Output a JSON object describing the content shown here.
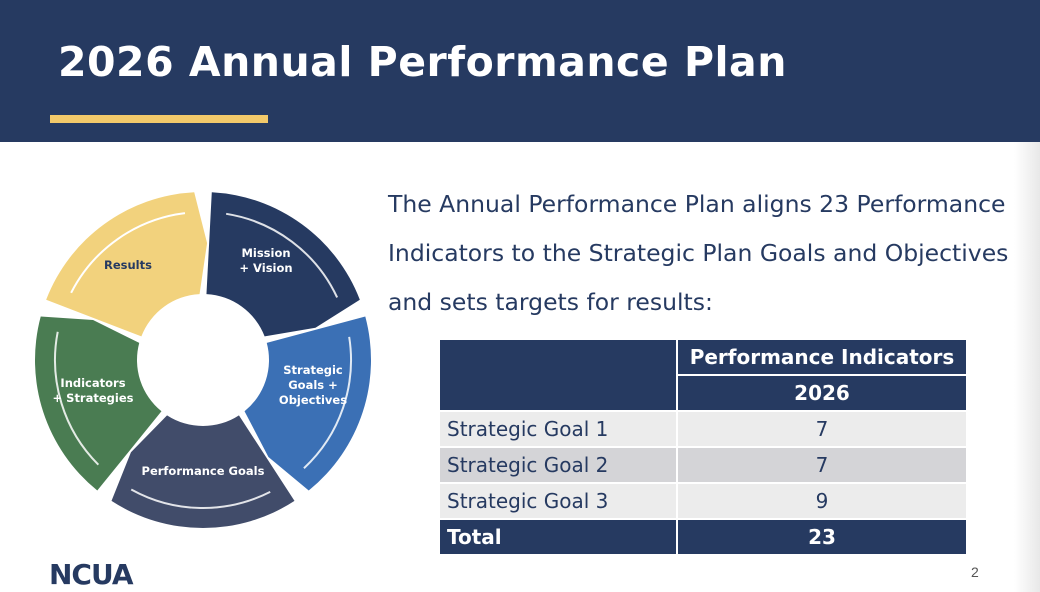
{
  "title": "2026 Annual Performance Plan",
  "colors": {
    "navy": "#263a61",
    "gold": "#f2c96a",
    "blue": "#3b70b5",
    "green": "#4a7c52",
    "slate": "#414c6a"
  },
  "cycle": [
    {
      "label": "Mission\n+ Vision",
      "color": "#263a61"
    },
    {
      "label": "Strategic\nGoals +\nObjectives",
      "color": "#3b70b5"
    },
    {
      "label": "Performance Goals",
      "color": "#414c6a"
    },
    {
      "label": "Indicators\n+ Strategies",
      "color": "#4a7c52"
    },
    {
      "label": "Results",
      "color": "#f2d27d"
    }
  ],
  "intro": "The Annual Performance Plan aligns 23 Performance Indicators to the Strategic Plan Goals and Objectives and sets targets for results:",
  "table": {
    "header": "Performance Indicators",
    "year": "2026",
    "rows": [
      {
        "label": "Strategic Goal 1",
        "value": "7"
      },
      {
        "label": "Strategic Goal 2",
        "value": "7"
      },
      {
        "label": "Strategic Goal 3",
        "value": "9"
      }
    ],
    "total": {
      "label": "Total",
      "value": "23"
    }
  },
  "logo": "NCUA",
  "page_number": "2"
}
